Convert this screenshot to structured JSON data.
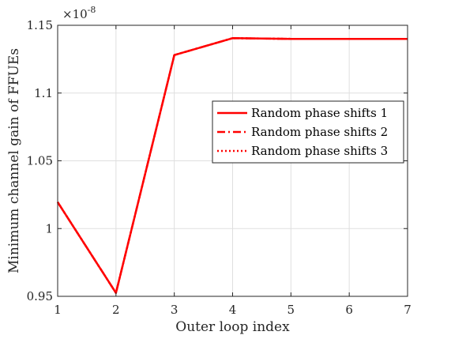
{
  "chart_data": {
    "type": "line",
    "title": "",
    "xlabel": "Outer loop index",
    "ylabel": "Minimum channel gain of FFUEs",
    "exponent_label": "×10",
    "exponent_power": "-8",
    "x": [
      1,
      2,
      3,
      4,
      5,
      6,
      7
    ],
    "xlim": [
      1,
      7
    ],
    "ylim": [
      0.95,
      1.15
    ],
    "xticks": [
      "1",
      "2",
      "3",
      "4",
      "5",
      "6",
      "7"
    ],
    "yticks": [
      "0.95",
      "1",
      "1.05",
      "1.1",
      "1.15"
    ],
    "grid": true,
    "legend_position": "right",
    "series": [
      {
        "name": "Random phase shifts 1",
        "style": "solid",
        "color": "#ff0000",
        "values": [
          1.0195,
          0.9525,
          1.128,
          1.1405,
          1.14,
          1.14,
          1.14
        ]
      },
      {
        "name": "Random phase shifts 2",
        "style": "dashdot",
        "color": "#ff0000",
        "values": [
          1.0195,
          0.9525,
          1.128,
          1.1405,
          1.14,
          1.14,
          1.14
        ]
      },
      {
        "name": "Random phase shifts 3",
        "style": "dotted",
        "color": "#ff0000",
        "values": [
          1.0195,
          0.9525,
          1.128,
          1.1405,
          1.14,
          1.14,
          1.14
        ]
      }
    ]
  }
}
